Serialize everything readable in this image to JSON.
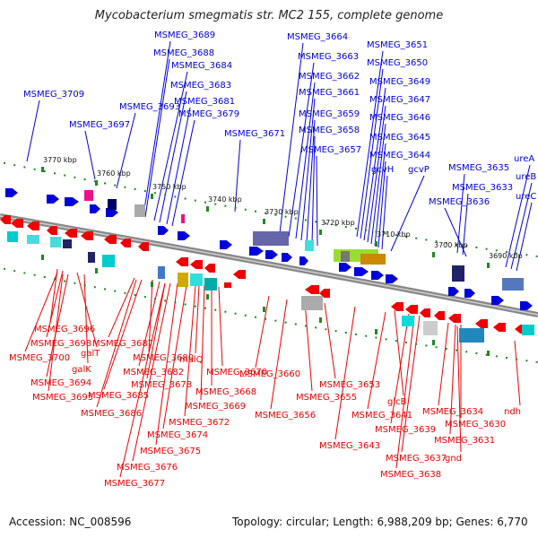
{
  "title": "Mycobacterium smegmatis str. MC2 155, complete genome",
  "footer": {
    "accession": "Accession: NC_008596",
    "topology": "Topology: circular; Length: 6,988,209 bp; Genes: 6,770"
  },
  "colors": {
    "forward": "#0000dd",
    "reverse": "#ee0000",
    "backbone": "#888888",
    "tick": "#228822"
  },
  "scale_labels": [
    "3770 kbp",
    "3760 kbp",
    "3750 kbp",
    "3740 kbp",
    "3730 kbp",
    "3720 kbp",
    "3710 kbp",
    "3700 kbp",
    "3690 kbp"
  ],
  "top_labels": [
    "MSMEG_3709",
    "MSMEG_3697",
    "MSMEG_3693",
    "MSMEG_3689",
    "MSMEG_3688",
    "MSMEG_3684",
    "MSMEG_3683",
    "MSMEG_3681",
    "MSMEG_3679",
    "MSMEG_3671",
    "MSMEG_3664",
    "MSMEG_3663",
    "MSMEG_3662",
    "MSMEG_3661",
    "MSMEG_3659",
    "MSMEG_3658",
    "MSMEG_3657",
    "MSMEG_3651",
    "MSMEG_3650",
    "MSMEG_3649",
    "MSMEG_3647",
    "MSMEG_3646",
    "MSMEG_3645",
    "MSMEG_3644",
    "gcvH",
    "gcvP",
    "MSMEG_3635",
    "MSMEG_3633",
    "MSMEG_3636",
    "ureA",
    "ureB",
    "ureC"
  ],
  "bottom_labels": [
    "MSMEG_3696",
    "MSMEG_3698",
    "galT",
    "MSMEG_3700",
    "galK",
    "MSMEG_3694",
    "MSMEG_3695",
    "MSMEG_3687",
    "MSMEG_3680",
    "MSMEG_3682",
    "MSMEG_3678",
    "MSMEG_3685",
    "MSMEG_3686",
    "malQ",
    "MSMEG_3670",
    "MSMEG_3668",
    "MSMEG_3669",
    "MSMEG_3672",
    "MSMEG_3674",
    "MSMEG_3675",
    "MSMEG_3676",
    "MSMEG_3677",
    "MSMEG_3660",
    "MSMEG_3656",
    "MSMEG_3655",
    "MSMEG_3653",
    "MSMEG_3643",
    "glcB",
    "MSMEG_3641",
    "MSMEG_3639",
    "MSMEG_3637",
    "MSMEG_3638",
    "MSMEG_3634",
    "MSMEG_3630",
    "MSMEG_3631",
    "gnd",
    "ndh"
  ]
}
